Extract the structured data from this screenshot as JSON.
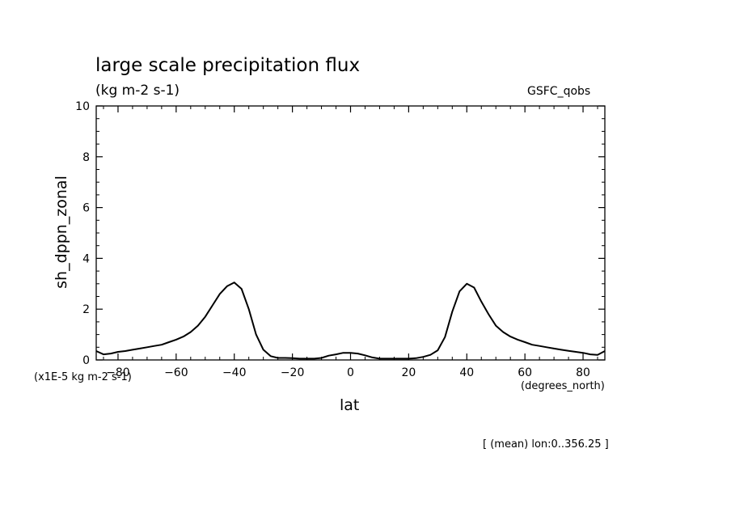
{
  "chart_data": {
    "type": "line",
    "title": "large scale precipitation flux",
    "subtitle": "(kg m-2 s-1)",
    "source_label": "GSFC_qobs",
    "xlabel": "lat",
    "x_units": "(degrees_north)",
    "ylabel": "sh_dppn_zonal",
    "y_units": "(x1E-5 kg m-2 s-1)",
    "footnote": "[ (mean) lon:0..356.25 ]",
    "xlim": [
      -87.5,
      87.5
    ],
    "ylim": [
      0,
      10
    ],
    "x_ticks": [
      -80,
      -60,
      -40,
      -20,
      0,
      20,
      40,
      60,
      80
    ],
    "y_ticks": [
      0,
      2,
      4,
      6,
      8,
      10
    ],
    "grid": false,
    "series": [
      {
        "x": [
          -87.5,
          -85,
          -82.5,
          -80,
          -77.5,
          -75,
          -72.5,
          -70,
          -67.5,
          -65,
          -62.5,
          -60,
          -57.5,
          -55,
          -52.5,
          -50,
          -47.5,
          -45,
          -42.5,
          -40,
          -37.5,
          -35,
          -32.5,
          -30,
          -27.5,
          -25,
          -22.5,
          -20,
          -17.5,
          -15,
          -12.5,
          -10,
          -7.5,
          -5,
          -2.5,
          0,
          2.5,
          5,
          7.5,
          10,
          12.5,
          15,
          17.5,
          20,
          22.5,
          25,
          27.5,
          30,
          32.5,
          35,
          37.5,
          40,
          42.5,
          45,
          47.5,
          50,
          52.5,
          55,
          57.5,
          60,
          62.5,
          65,
          67.5,
          70,
          72.5,
          75,
          77.5,
          80,
          82.5,
          85,
          87.5
        ],
        "y": [
          0.35,
          0.22,
          0.25,
          0.32,
          0.35,
          0.4,
          0.45,
          0.5,
          0.55,
          0.6,
          0.7,
          0.8,
          0.92,
          1.1,
          1.35,
          1.7,
          2.15,
          2.6,
          2.9,
          3.05,
          2.8,
          2.0,
          1.0,
          0.4,
          0.15,
          0.08,
          0.08,
          0.07,
          0.05,
          0.05,
          0.05,
          0.08,
          0.17,
          0.22,
          0.28,
          0.28,
          0.25,
          0.18,
          0.1,
          0.05,
          0.05,
          0.05,
          0.05,
          0.05,
          0.07,
          0.12,
          0.2,
          0.38,
          0.9,
          1.9,
          2.7,
          3.0,
          2.85,
          2.3,
          1.8,
          1.35,
          1.1,
          0.92,
          0.8,
          0.7,
          0.6,
          0.55,
          0.5,
          0.45,
          0.4,
          0.36,
          0.32,
          0.28,
          0.22,
          0.2,
          0.35
        ]
      }
    ]
  }
}
